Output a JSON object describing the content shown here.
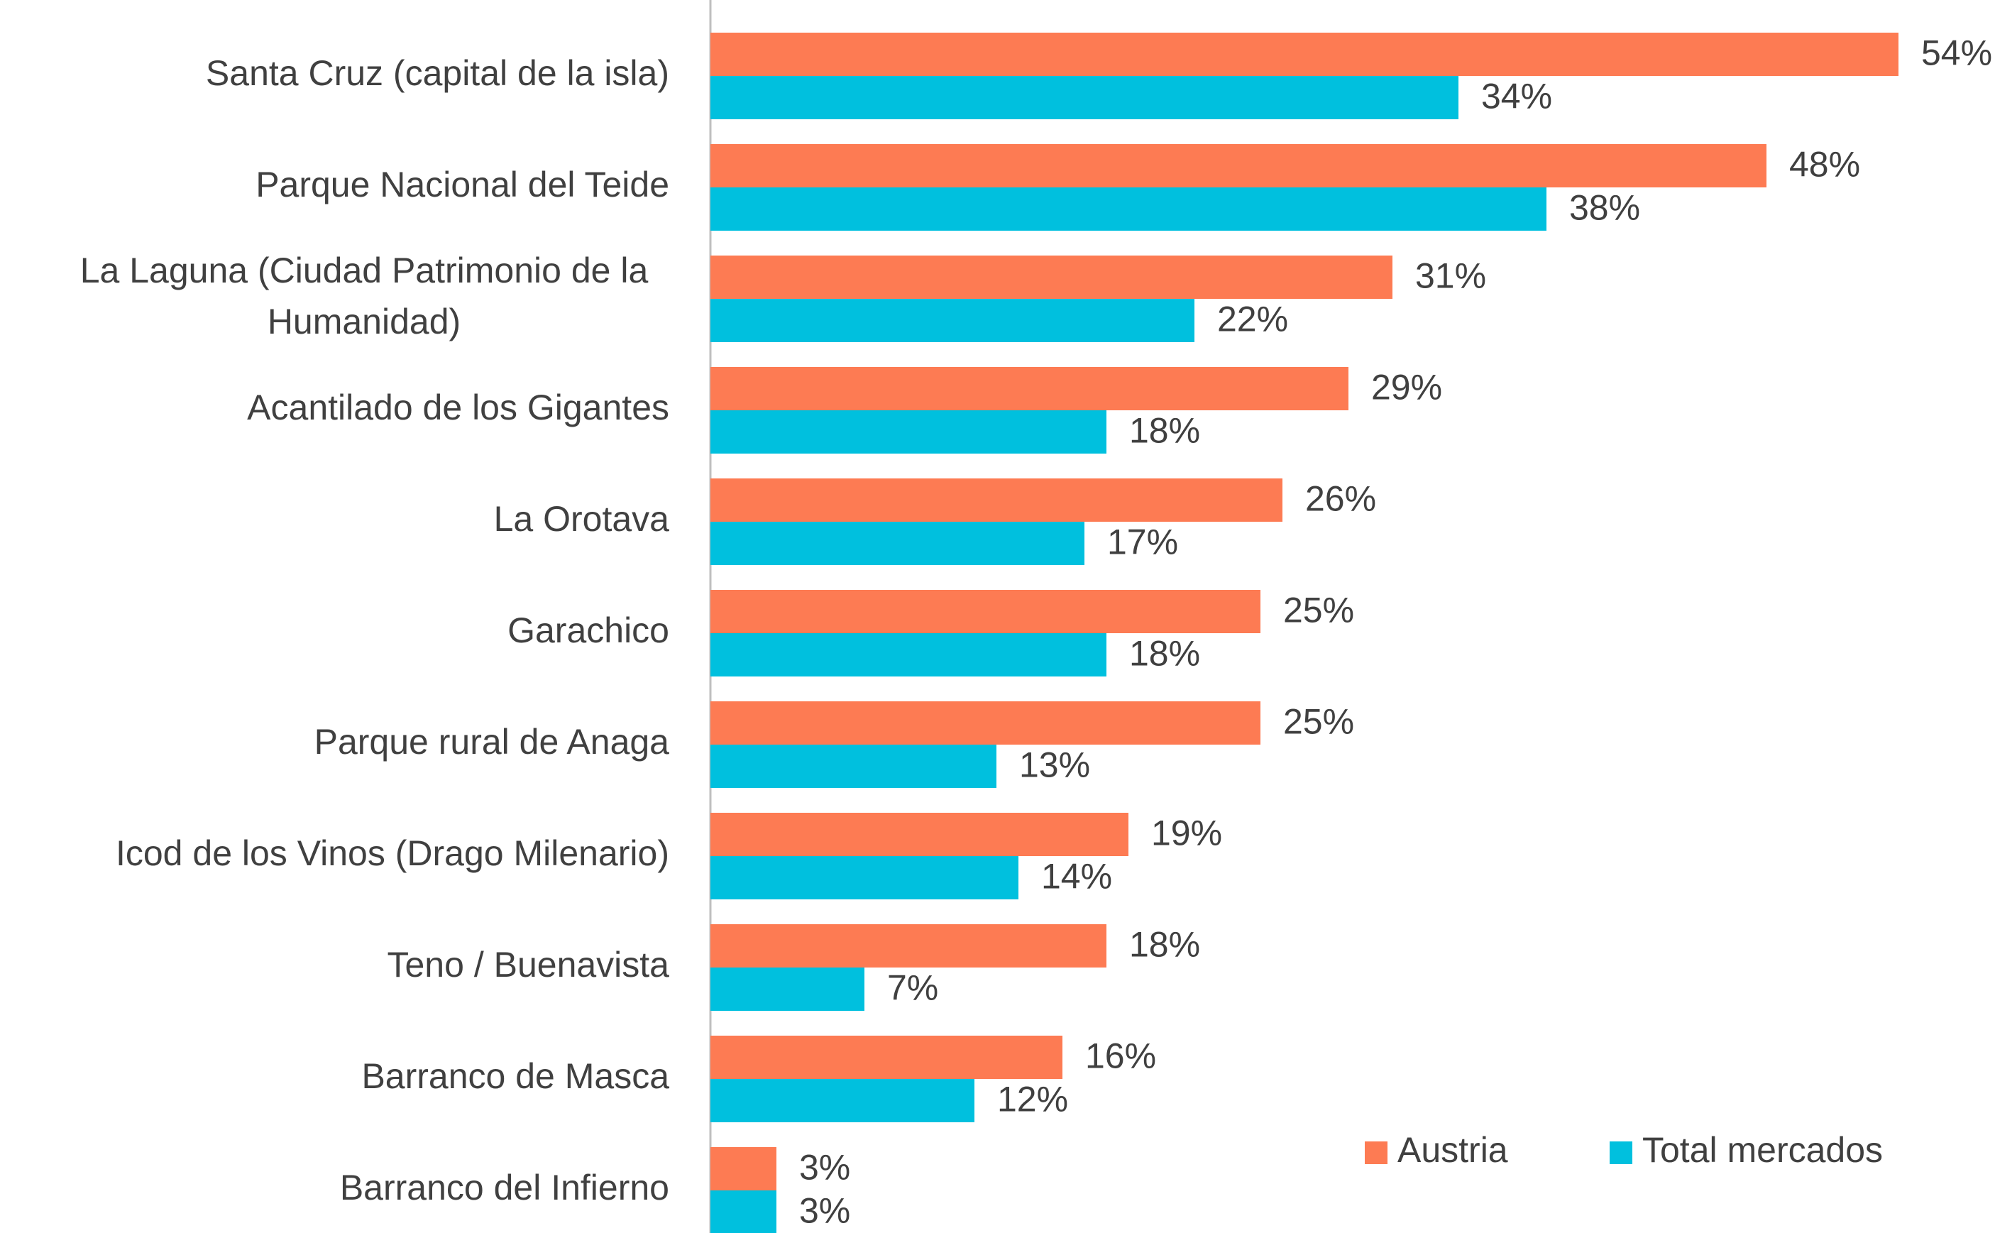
{
  "chart_data": {
    "type": "bar",
    "orientation": "horizontal",
    "categories": [
      "Santa Cruz (capital de la isla)",
      "Parque Nacional del Teide",
      "La Laguna (Ciudad Patrimonio de la Humanidad)",
      "Acantilado de los Gigantes",
      "La Orotava",
      "Garachico",
      "Parque rural de Anaga",
      "Icod de los Vinos (Drago Milenario)",
      "Teno / Buenavista",
      "Barranco de Masca",
      "Barranco del Infierno"
    ],
    "series": [
      {
        "name": "Austria",
        "color": "#fd7b53",
        "values": [
          54,
          48,
          31,
          29,
          26,
          25,
          25,
          19,
          18,
          16,
          3
        ],
        "value_labels": [
          "54%",
          "48%",
          "31%",
          "29%",
          "26%",
          "25%",
          "25%",
          "19%",
          "18%",
          "16%",
          "3%"
        ]
      },
      {
        "name": "Total mercados",
        "color": "#00c0de",
        "values": [
          34,
          38,
          22,
          18,
          17,
          18,
          13,
          14,
          7,
          12,
          3
        ],
        "value_labels": [
          "34%",
          "38%",
          "22%",
          "18%",
          "17%",
          "18%",
          "13%",
          "14%",
          "7%",
          "12%",
          "3%"
        ]
      }
    ],
    "legend": "bottom-right"
  }
}
